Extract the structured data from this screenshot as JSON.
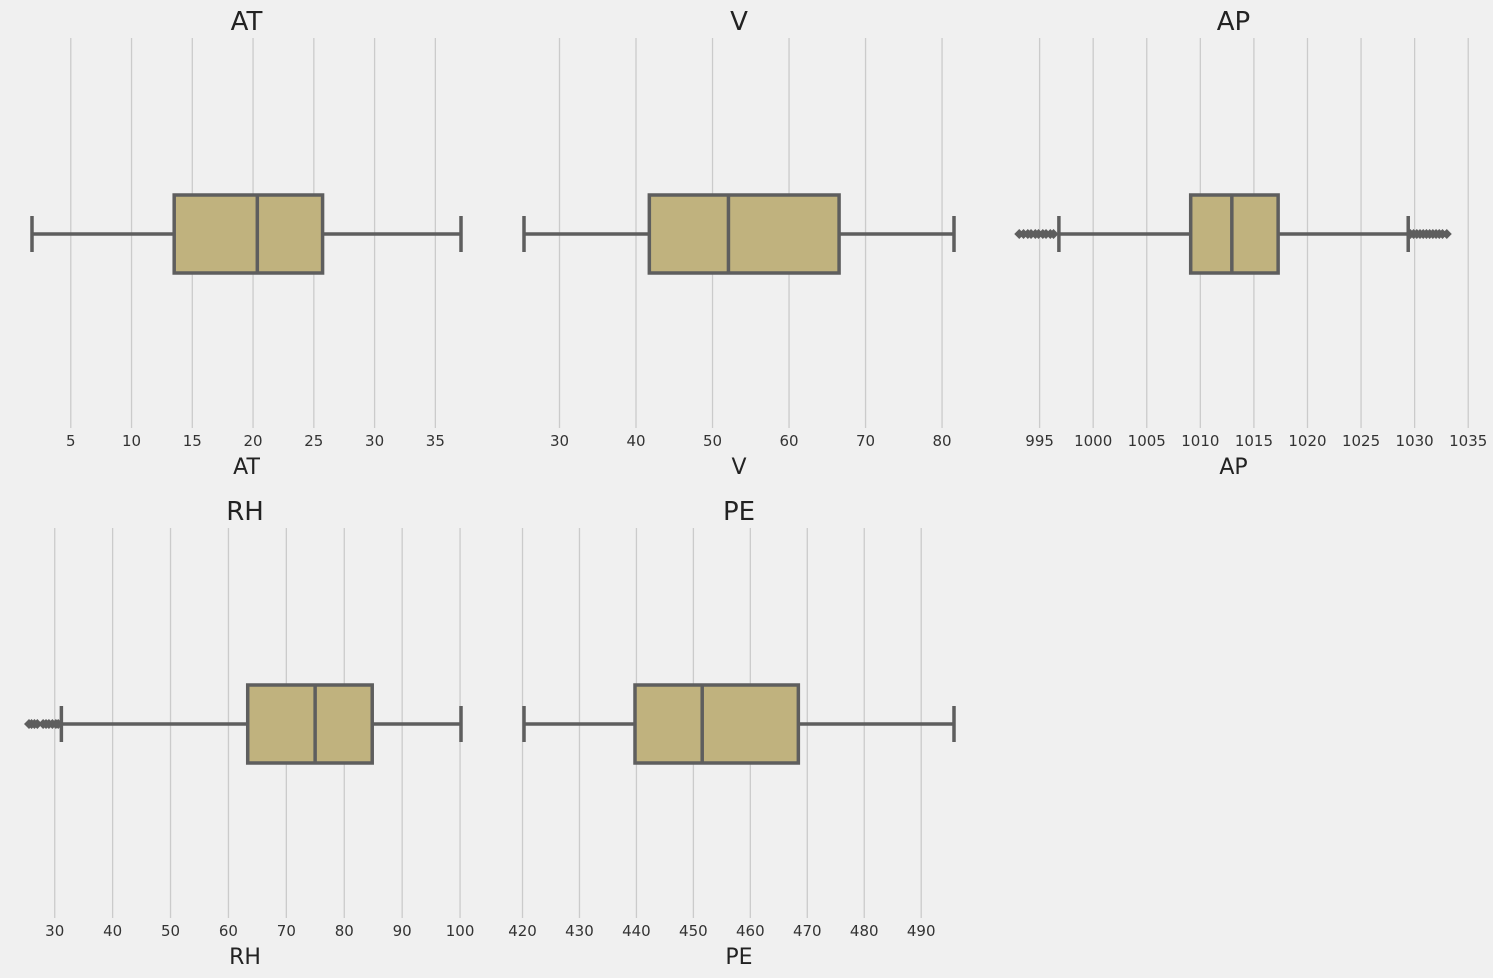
{
  "figure": {
    "background": "#f0f0f0",
    "box_fill": "#c0b27e",
    "line_color": "#5e5e5e",
    "grid_color": "#cbcbcb"
  },
  "chart_data": [
    {
      "type": "box",
      "orientation": "horizontal",
      "title": "AT",
      "xlabel": "AT",
      "xlim": [
        1.81,
        37.11
      ],
      "xticks": [
        5,
        10,
        15,
        20,
        25,
        30,
        35
      ],
      "grid": "vertical",
      "box": {
        "whisker_low": 1.81,
        "q1": 13.51,
        "median": 20.35,
        "q3": 25.72,
        "whisker_high": 37.11
      },
      "outliers": []
    },
    {
      "type": "box",
      "orientation": "horizontal",
      "title": "V",
      "xlabel": "V",
      "xlim": [
        25.36,
        81.56
      ],
      "xticks": [
        30,
        40,
        50,
        60,
        70,
        80
      ],
      "grid": "vertical",
      "box": {
        "whisker_low": 25.36,
        "q1": 41.74,
        "median": 52.08,
        "q3": 66.54,
        "whisker_high": 81.56
      },
      "outliers": []
    },
    {
      "type": "box",
      "orientation": "horizontal",
      "title": "AP",
      "xlabel": "AP",
      "xlim": [
        992.89,
        1033.3
      ],
      "xticks": [
        995,
        1000,
        1005,
        1010,
        1015,
        1020,
        1025,
        1030,
        1035
      ],
      "grid": "vertical",
      "box": {
        "whisker_low": 996.8,
        "q1": 1009.1,
        "median": 1012.94,
        "q3": 1017.26,
        "whisker_high": 1029.4
      },
      "outliers": [
        993.1,
        993.5,
        993.9,
        994.2,
        994.6,
        994.9,
        995.3,
        995.6,
        996.0,
        996.3,
        1029.6,
        1029.9,
        1030.2,
        1030.5,
        1030.8,
        1031.1,
        1031.4,
        1031.7,
        1032.0,
        1032.3,
        1032.6,
        1033.0
      ]
    },
    {
      "type": "box",
      "orientation": "horizontal",
      "title": "RH",
      "xlabel": "RH",
      "xlim": [
        25.56,
        100.16
      ],
      "xticks": [
        30,
        40,
        50,
        60,
        70,
        80,
        90,
        100
      ],
      "grid": "vertical",
      "box": {
        "whisker_low": 31.15,
        "q1": 63.33,
        "median": 74.97,
        "q3": 84.83,
        "whisker_high": 100.16
      },
      "outliers": [
        25.56,
        26.0,
        26.5,
        27.0,
        28.0,
        28.5,
        29.0,
        29.6,
        30.2,
        30.6
      ]
    },
    {
      "type": "box",
      "orientation": "horizontal",
      "title": "PE",
      "xlabel": "PE",
      "xlim": [
        420.26,
        495.76
      ],
      "xticks": [
        420,
        430,
        440,
        450,
        460,
        470,
        480,
        490
      ],
      "grid": "vertical",
      "box": {
        "whisker_low": 420.26,
        "q1": 439.75,
        "median": 451.55,
        "q3": 468.43,
        "whisker_high": 495.76
      },
      "outliers": []
    }
  ]
}
